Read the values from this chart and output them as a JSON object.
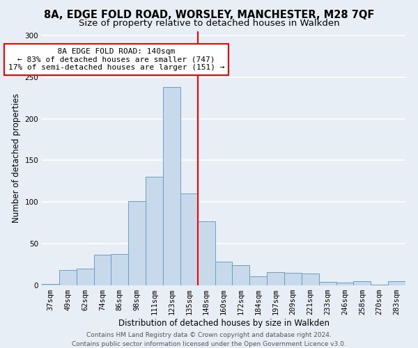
{
  "title_line1": "8A, EDGE FOLD ROAD, WORSLEY, MANCHESTER, M28 7QF",
  "title_line2": "Size of property relative to detached houses in Walkden",
  "xlabel": "Distribution of detached houses by size in Walkden",
  "ylabel": "Number of detached properties",
  "footer_line1": "Contains HM Land Registry data © Crown copyright and database right 2024.",
  "footer_line2": "Contains public sector information licensed under the Open Government Licence v3.0.",
  "annotation_line1": "8A EDGE FOLD ROAD: 140sqm",
  "annotation_line2": "← 83% of detached houses are smaller (747)",
  "annotation_line3": "17% of semi-detached houses are larger (151) →",
  "bar_labels": [
    "37sqm",
    "49sqm",
    "62sqm",
    "74sqm",
    "86sqm",
    "98sqm",
    "111sqm",
    "123sqm",
    "135sqm",
    "148sqm",
    "160sqm",
    "172sqm",
    "184sqm",
    "197sqm",
    "209sqm",
    "221sqm",
    "233sqm",
    "246sqm",
    "258sqm",
    "270sqm",
    "283sqm"
  ],
  "bar_heights": [
    2,
    18,
    20,
    37,
    38,
    101,
    130,
    238,
    110,
    77,
    28,
    24,
    11,
    16,
    15,
    14,
    4,
    3,
    5,
    1,
    5
  ],
  "bar_color": "#c9d9ec",
  "bar_edge_color": "#6a9fc0",
  "vline_color": "red",
  "annotation_box_color": "#ffffff",
  "annotation_box_edge_color": "red",
  "ylim": [
    0,
    305
  ],
  "yticks": [
    0,
    50,
    100,
    150,
    200,
    250,
    300
  ],
  "bg_color": "#e8eef5",
  "grid_color": "#ffffff",
  "title_fontsize": 10.5,
  "subtitle_fontsize": 9.5,
  "axis_label_fontsize": 8.5,
  "tick_fontsize": 7.5,
  "annotation_fontsize": 8,
  "footer_fontsize": 6.5
}
